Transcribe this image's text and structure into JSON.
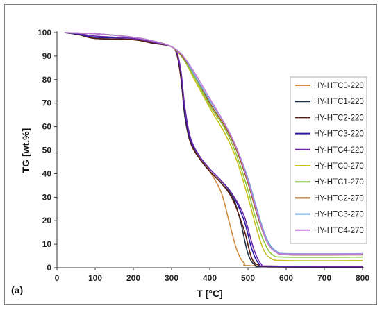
{
  "chart_data": {
    "type": "line",
    "title": "",
    "panel_label": "(a)",
    "xlabel": "T [°C]",
    "ylabel": "TG [wt.%]",
    "xlim": [
      0,
      800
    ],
    "ylim": [
      0,
      100
    ],
    "xticks": [
      0,
      100,
      200,
      300,
      400,
      500,
      600,
      700,
      800
    ],
    "yticks": [
      0,
      10,
      20,
      30,
      40,
      50,
      60,
      70,
      80,
      90,
      100
    ],
    "grid": false,
    "legend_position": "right",
    "series": [
      {
        "name": "HY-HTC0-220",
        "color": "#d08b3f",
        "points": [
          [
            20,
            100
          ],
          [
            60,
            99
          ],
          [
            100,
            97.5
          ],
          [
            200,
            97
          ],
          [
            250,
            95.5
          ],
          [
            300,
            94
          ],
          [
            315,
            90
          ],
          [
            325,
            80
          ],
          [
            335,
            65
          ],
          [
            350,
            53
          ],
          [
            375,
            46
          ],
          [
            400,
            41
          ],
          [
            430,
            32
          ],
          [
            450,
            20
          ],
          [
            470,
            8
          ],
          [
            490,
            2
          ],
          [
            520,
            0.8
          ],
          [
            800,
            0.5
          ]
        ]
      },
      {
        "name": "HY-HTC1-220",
        "color": "#1f3344",
        "points": [
          [
            20,
            100
          ],
          [
            60,
            99
          ],
          [
            100,
            97.5
          ],
          [
            200,
            97
          ],
          [
            250,
            95.5
          ],
          [
            300,
            94
          ],
          [
            315,
            90
          ],
          [
            325,
            80
          ],
          [
            335,
            64
          ],
          [
            350,
            53
          ],
          [
            375,
            46
          ],
          [
            400,
            41
          ],
          [
            430,
            36
          ],
          [
            460,
            30
          ],
          [
            480,
            20
          ],
          [
            500,
            6
          ],
          [
            520,
            1
          ],
          [
            550,
            0.5
          ],
          [
            800,
            0.3
          ]
        ]
      },
      {
        "name": "HY-HTC2-220",
        "color": "#5a1a10",
        "points": [
          [
            20,
            100
          ],
          [
            60,
            99
          ],
          [
            100,
            97.5
          ],
          [
            200,
            97
          ],
          [
            250,
            95.5
          ],
          [
            300,
            94
          ],
          [
            315,
            90
          ],
          [
            325,
            80
          ],
          [
            335,
            65
          ],
          [
            350,
            53
          ],
          [
            375,
            46
          ],
          [
            400,
            41
          ],
          [
            430,
            36
          ],
          [
            460,
            29
          ],
          [
            490,
            16
          ],
          [
            510,
            4
          ],
          [
            530,
            1
          ],
          [
            560,
            0.5
          ],
          [
            800,
            0.3
          ]
        ]
      },
      {
        "name": "HY-HTC3-220",
        "color": "#2b1aa0",
        "points": [
          [
            20,
            100
          ],
          [
            60,
            99.2
          ],
          [
            100,
            98
          ],
          [
            200,
            97.5
          ],
          [
            250,
            96
          ],
          [
            300,
            94
          ],
          [
            315,
            91
          ],
          [
            325,
            82
          ],
          [
            335,
            66
          ],
          [
            350,
            54
          ],
          [
            375,
            47
          ],
          [
            400,
            42
          ],
          [
            430,
            37
          ],
          [
            460,
            31
          ],
          [
            490,
            20
          ],
          [
            510,
            8
          ],
          [
            530,
            1.5
          ],
          [
            560,
            0.6
          ],
          [
            800,
            0.4
          ]
        ]
      },
      {
        "name": "HY-HTC4-220",
        "color": "#6a2aa8",
        "points": [
          [
            20,
            100
          ],
          [
            60,
            99.5
          ],
          [
            100,
            98.5
          ],
          [
            200,
            97.5
          ],
          [
            250,
            96
          ],
          [
            300,
            94
          ],
          [
            315,
            91
          ],
          [
            325,
            83
          ],
          [
            335,
            68
          ],
          [
            350,
            55
          ],
          [
            375,
            47
          ],
          [
            400,
            42
          ],
          [
            430,
            37
          ],
          [
            460,
            31
          ],
          [
            490,
            22
          ],
          [
            515,
            8
          ],
          [
            535,
            1.5
          ],
          [
            560,
            0.7
          ],
          [
            800,
            0.5
          ]
        ]
      },
      {
        "name": "HY-HTC0-270",
        "color": "#c9c11d",
        "points": [
          [
            20,
            100
          ],
          [
            100,
            99.5
          ],
          [
            200,
            98
          ],
          [
            250,
            96.5
          ],
          [
            300,
            94
          ],
          [
            330,
            89
          ],
          [
            360,
            80
          ],
          [
            400,
            68
          ],
          [
            440,
            57
          ],
          [
            470,
            46
          ],
          [
            500,
            30
          ],
          [
            520,
            18
          ],
          [
            540,
            8
          ],
          [
            560,
            4
          ],
          [
            600,
            3
          ],
          [
            800,
            3
          ]
        ]
      },
      {
        "name": "HY-HTC1-270",
        "color": "#8cc63f",
        "points": [
          [
            20,
            100
          ],
          [
            100,
            99.5
          ],
          [
            200,
            98
          ],
          [
            250,
            96.5
          ],
          [
            300,
            94
          ],
          [
            330,
            89
          ],
          [
            360,
            81
          ],
          [
            400,
            69
          ],
          [
            440,
            59
          ],
          [
            470,
            48
          ],
          [
            500,
            33
          ],
          [
            520,
            21
          ],
          [
            545,
            10
          ],
          [
            565,
            5.5
          ],
          [
            600,
            4.5
          ],
          [
            800,
            4.5
          ]
        ]
      },
      {
        "name": "HY-HTC2-270",
        "color": "#9a5a1a",
        "points": [
          [
            20,
            100
          ],
          [
            100,
            99.5
          ],
          [
            200,
            98
          ],
          [
            250,
            96.5
          ],
          [
            300,
            94
          ],
          [
            330,
            89.5
          ],
          [
            360,
            82
          ],
          [
            400,
            70
          ],
          [
            440,
            60
          ],
          [
            470,
            50
          ],
          [
            500,
            36
          ],
          [
            525,
            22
          ],
          [
            550,
            11
          ],
          [
            575,
            6.5
          ],
          [
            610,
            5.5
          ],
          [
            800,
            5.5
          ]
        ]
      },
      {
        "name": "HY-HTC3-270",
        "color": "#6ea6d8",
        "points": [
          [
            20,
            100
          ],
          [
            100,
            99.5
          ],
          [
            200,
            98
          ],
          [
            250,
            96.5
          ],
          [
            300,
            94
          ],
          [
            330,
            90
          ],
          [
            360,
            82
          ],
          [
            400,
            71
          ],
          [
            440,
            61
          ],
          [
            470,
            51
          ],
          [
            500,
            38
          ],
          [
            525,
            24
          ],
          [
            550,
            12
          ],
          [
            575,
            7
          ],
          [
            610,
            6
          ],
          [
            800,
            6
          ]
        ]
      },
      {
        "name": "HY-HTC4-270",
        "color": "#c27ad8",
        "points": [
          [
            20,
            100
          ],
          [
            100,
            99.5
          ],
          [
            200,
            98
          ],
          [
            250,
            96.5
          ],
          [
            300,
            94
          ],
          [
            330,
            90
          ],
          [
            360,
            83
          ],
          [
            400,
            72
          ],
          [
            440,
            61
          ],
          [
            470,
            51
          ],
          [
            500,
            37
          ],
          [
            525,
            23
          ],
          [
            550,
            11
          ],
          [
            575,
            6.5
          ],
          [
            610,
            5.8
          ],
          [
            800,
            5.8
          ]
        ]
      }
    ]
  }
}
